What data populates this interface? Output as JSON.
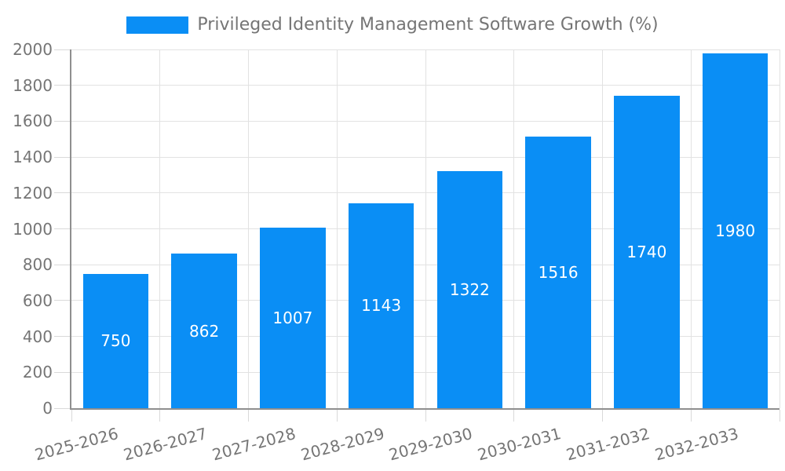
{
  "chart_data": {
    "type": "bar",
    "title": "",
    "legend_label": "Privileged Identity Management Software Growth (%)",
    "legend_position": "top",
    "categories": [
      "2025-2026",
      "2026-2027",
      "2027-2028",
      "2028-2029",
      "2029-2030",
      "2030-2031",
      "2031-2032",
      "2032-2033"
    ],
    "values": [
      750,
      862,
      1007,
      1143,
      1322,
      1516,
      1740,
      1980
    ],
    "xlabel": "",
    "ylabel": "",
    "ylim": [
      0,
      2000
    ],
    "ytick_step": 200,
    "yticks": [
      0,
      200,
      400,
      600,
      800,
      1000,
      1200,
      1400,
      1600,
      1800,
      2000
    ],
    "grid": true,
    "x_label_rotation_deg": -15,
    "colors": {
      "bar": "#0a8ef5",
      "bar_value_text": "#ffffff",
      "axis_line": "#8f8f8f",
      "gridline": "#e2e2e2",
      "tick": "#d9d9d9",
      "label_text": "#757575",
      "background": "#ffffff"
    }
  }
}
